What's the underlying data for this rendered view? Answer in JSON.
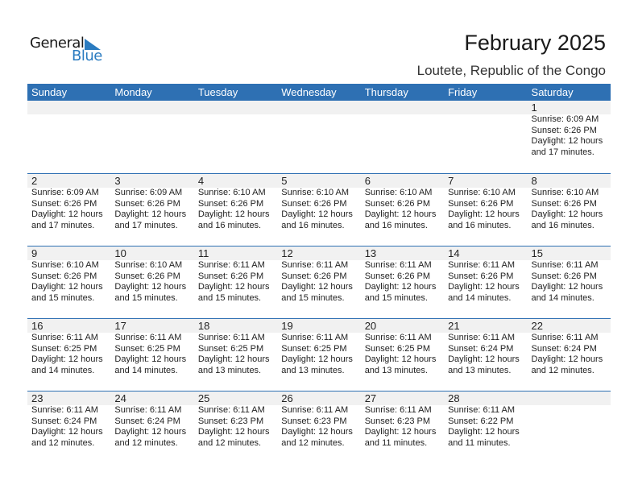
{
  "logo": {
    "general": "General",
    "blue": "Blue",
    "accent": "#2a7bc0"
  },
  "title": "February 2025",
  "location": "Loutete, Republic of the Congo",
  "colors": {
    "header": "#2e70b3",
    "band": "#f1f1f1"
  },
  "weekdays": [
    "Sunday",
    "Monday",
    "Tuesday",
    "Wednesday",
    "Thursday",
    "Friday",
    "Saturday"
  ],
  "weeks": [
    [
      null,
      null,
      null,
      null,
      null,
      null,
      {
        "day": "1",
        "sunrise": "Sunrise: 6:09 AM",
        "sunset": "Sunset: 6:26 PM",
        "daylight": "Daylight: 12 hours",
        "minutes": "and 17 minutes."
      }
    ],
    [
      {
        "day": "2",
        "sunrise": "Sunrise: 6:09 AM",
        "sunset": "Sunset: 6:26 PM",
        "daylight": "Daylight: 12 hours",
        "minutes": "and 17 minutes."
      },
      {
        "day": "3",
        "sunrise": "Sunrise: 6:09 AM",
        "sunset": "Sunset: 6:26 PM",
        "daylight": "Daylight: 12 hours",
        "minutes": "and 17 minutes."
      },
      {
        "day": "4",
        "sunrise": "Sunrise: 6:10 AM",
        "sunset": "Sunset: 6:26 PM",
        "daylight": "Daylight: 12 hours",
        "minutes": "and 16 minutes."
      },
      {
        "day": "5",
        "sunrise": "Sunrise: 6:10 AM",
        "sunset": "Sunset: 6:26 PM",
        "daylight": "Daylight: 12 hours",
        "minutes": "and 16 minutes."
      },
      {
        "day": "6",
        "sunrise": "Sunrise: 6:10 AM",
        "sunset": "Sunset: 6:26 PM",
        "daylight": "Daylight: 12 hours",
        "minutes": "and 16 minutes."
      },
      {
        "day": "7",
        "sunrise": "Sunrise: 6:10 AM",
        "sunset": "Sunset: 6:26 PM",
        "daylight": "Daylight: 12 hours",
        "minutes": "and 16 minutes."
      },
      {
        "day": "8",
        "sunrise": "Sunrise: 6:10 AM",
        "sunset": "Sunset: 6:26 PM",
        "daylight": "Daylight: 12 hours",
        "minutes": "and 16 minutes."
      }
    ],
    [
      {
        "day": "9",
        "sunrise": "Sunrise: 6:10 AM",
        "sunset": "Sunset: 6:26 PM",
        "daylight": "Daylight: 12 hours",
        "minutes": "and 15 minutes."
      },
      {
        "day": "10",
        "sunrise": "Sunrise: 6:10 AM",
        "sunset": "Sunset: 6:26 PM",
        "daylight": "Daylight: 12 hours",
        "minutes": "and 15 minutes."
      },
      {
        "day": "11",
        "sunrise": "Sunrise: 6:11 AM",
        "sunset": "Sunset: 6:26 PM",
        "daylight": "Daylight: 12 hours",
        "minutes": "and 15 minutes."
      },
      {
        "day": "12",
        "sunrise": "Sunrise: 6:11 AM",
        "sunset": "Sunset: 6:26 PM",
        "daylight": "Daylight: 12 hours",
        "minutes": "and 15 minutes."
      },
      {
        "day": "13",
        "sunrise": "Sunrise: 6:11 AM",
        "sunset": "Sunset: 6:26 PM",
        "daylight": "Daylight: 12 hours",
        "minutes": "and 15 minutes."
      },
      {
        "day": "14",
        "sunrise": "Sunrise: 6:11 AM",
        "sunset": "Sunset: 6:26 PM",
        "daylight": "Daylight: 12 hours",
        "minutes": "and 14 minutes."
      },
      {
        "day": "15",
        "sunrise": "Sunrise: 6:11 AM",
        "sunset": "Sunset: 6:26 PM",
        "daylight": "Daylight: 12 hours",
        "minutes": "and 14 minutes."
      }
    ],
    [
      {
        "day": "16",
        "sunrise": "Sunrise: 6:11 AM",
        "sunset": "Sunset: 6:25 PM",
        "daylight": "Daylight: 12 hours",
        "minutes": "and 14 minutes."
      },
      {
        "day": "17",
        "sunrise": "Sunrise: 6:11 AM",
        "sunset": "Sunset: 6:25 PM",
        "daylight": "Daylight: 12 hours",
        "minutes": "and 14 minutes."
      },
      {
        "day": "18",
        "sunrise": "Sunrise: 6:11 AM",
        "sunset": "Sunset: 6:25 PM",
        "daylight": "Daylight: 12 hours",
        "minutes": "and 13 minutes."
      },
      {
        "day": "19",
        "sunrise": "Sunrise: 6:11 AM",
        "sunset": "Sunset: 6:25 PM",
        "daylight": "Daylight: 12 hours",
        "minutes": "and 13 minutes."
      },
      {
        "day": "20",
        "sunrise": "Sunrise: 6:11 AM",
        "sunset": "Sunset: 6:25 PM",
        "daylight": "Daylight: 12 hours",
        "minutes": "and 13 minutes."
      },
      {
        "day": "21",
        "sunrise": "Sunrise: 6:11 AM",
        "sunset": "Sunset: 6:24 PM",
        "daylight": "Daylight: 12 hours",
        "minutes": "and 13 minutes."
      },
      {
        "day": "22",
        "sunrise": "Sunrise: 6:11 AM",
        "sunset": "Sunset: 6:24 PM",
        "daylight": "Daylight: 12 hours",
        "minutes": "and 12 minutes."
      }
    ],
    [
      {
        "day": "23",
        "sunrise": "Sunrise: 6:11 AM",
        "sunset": "Sunset: 6:24 PM",
        "daylight": "Daylight: 12 hours",
        "minutes": "and 12 minutes."
      },
      {
        "day": "24",
        "sunrise": "Sunrise: 6:11 AM",
        "sunset": "Sunset: 6:24 PM",
        "daylight": "Daylight: 12 hours",
        "minutes": "and 12 minutes."
      },
      {
        "day": "25",
        "sunrise": "Sunrise: 6:11 AM",
        "sunset": "Sunset: 6:23 PM",
        "daylight": "Daylight: 12 hours",
        "minutes": "and 12 minutes."
      },
      {
        "day": "26",
        "sunrise": "Sunrise: 6:11 AM",
        "sunset": "Sunset: 6:23 PM",
        "daylight": "Daylight: 12 hours",
        "minutes": "and 12 minutes."
      },
      {
        "day": "27",
        "sunrise": "Sunrise: 6:11 AM",
        "sunset": "Sunset: 6:23 PM",
        "daylight": "Daylight: 12 hours",
        "minutes": "and 11 minutes."
      },
      {
        "day": "28",
        "sunrise": "Sunrise: 6:11 AM",
        "sunset": "Sunset: 6:22 PM",
        "daylight": "Daylight: 12 hours",
        "minutes": "and 11 minutes."
      },
      null
    ]
  ]
}
